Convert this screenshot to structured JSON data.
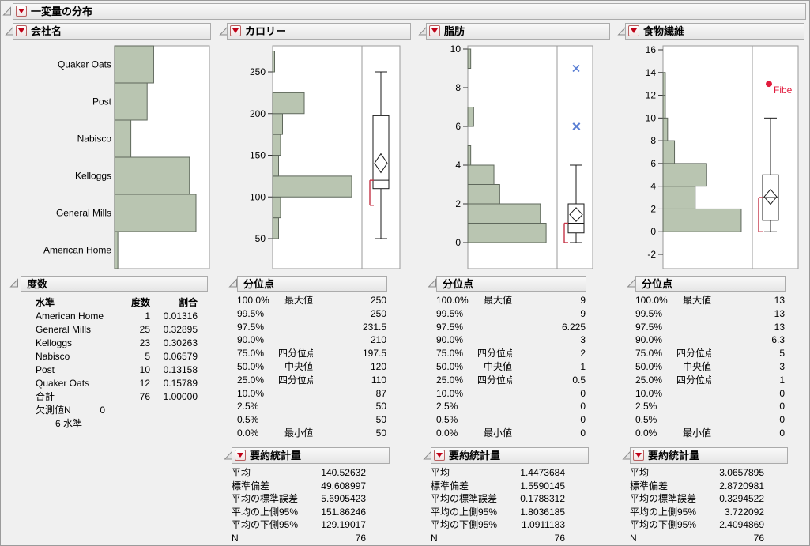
{
  "window": {
    "title": "一変量の分布"
  },
  "colors": {
    "histogram_fill": "#b9c5b1",
    "histogram_stroke": "#5f685c",
    "plot_border": "#9a9a9a",
    "box_stroke": "#1a1a1a",
    "accent_red": "#e11b3d",
    "bracket_red": "#c53245",
    "outlier_blue": "#5b7fd4"
  },
  "panels": [
    {
      "title": "会社名",
      "freq": {
        "title": "度数",
        "columns": [
          "水準",
          "度数",
          "割合"
        ],
        "rows": [
          [
            "American Home",
            "1",
            "0.01316"
          ],
          [
            "General Mills",
            "25",
            "0.32895"
          ],
          [
            "Kelloggs",
            "23",
            "0.30263"
          ],
          [
            "Nabisco",
            "5",
            "0.06579"
          ],
          [
            "Post",
            "10",
            "0.13158"
          ],
          [
            "Quaker Oats",
            "12",
            "0.15789"
          ],
          [
            "合計",
            "76",
            "1.00000"
          ]
        ],
        "missing_label": "欠測値N",
        "missing_value": "0",
        "levels_note": "6 水準"
      }
    },
    {
      "title": "カロリー",
      "quantiles": {
        "title": "分位点",
        "rows": [
          [
            "100.0%",
            "最大値",
            "250"
          ],
          [
            "99.5%",
            "",
            "250"
          ],
          [
            "97.5%",
            "",
            "231.5"
          ],
          [
            "90.0%",
            "",
            "210"
          ],
          [
            "75.0%",
            "四分位点",
            "197.5"
          ],
          [
            "50.0%",
            "中央値",
            "120"
          ],
          [
            "25.0%",
            "四分位点",
            "110"
          ],
          [
            "10.0%",
            "",
            "87"
          ],
          [
            "2.5%",
            "",
            "50"
          ],
          [
            "0.5%",
            "",
            "50"
          ],
          [
            "0.0%",
            "最小値",
            "50"
          ]
        ]
      },
      "summary": {
        "title": "要約統計量",
        "rows": [
          [
            "平均",
            "140.52632"
          ],
          [
            "標準偏差",
            "49.608997"
          ],
          [
            "平均の標準誤差",
            "5.6905423"
          ],
          [
            "平均の上側95%",
            "151.86246"
          ],
          [
            "平均の下側95%",
            "129.19017"
          ],
          [
            "N",
            "76"
          ]
        ]
      }
    },
    {
      "title": "脂肪",
      "quantiles": {
        "title": "分位点",
        "rows": [
          [
            "100.0%",
            "最大値",
            "9"
          ],
          [
            "99.5%",
            "",
            "9"
          ],
          [
            "97.5%",
            "",
            "6.225"
          ],
          [
            "90.0%",
            "",
            "3"
          ],
          [
            "75.0%",
            "四分位点",
            "2"
          ],
          [
            "50.0%",
            "中央値",
            "1"
          ],
          [
            "25.0%",
            "四分位点",
            "0.5"
          ],
          [
            "10.0%",
            "",
            "0"
          ],
          [
            "2.5%",
            "",
            "0"
          ],
          [
            "0.5%",
            "",
            "0"
          ],
          [
            "0.0%",
            "最小値",
            "0"
          ]
        ]
      },
      "summary": {
        "title": "要約統計量",
        "rows": [
          [
            "平均",
            "1.4473684"
          ],
          [
            "標準偏差",
            "1.5590145"
          ],
          [
            "平均の標準誤差",
            "0.1788312"
          ],
          [
            "平均の上側95%",
            "1.8036185"
          ],
          [
            "平均の下側95%",
            "1.0911183"
          ],
          [
            "N",
            "76"
          ]
        ]
      }
    },
    {
      "title": "食物繊維",
      "quantiles": {
        "title": "分位点",
        "rows": [
          [
            "100.0%",
            "最大値",
            "13"
          ],
          [
            "99.5%",
            "",
            "13"
          ],
          [
            "97.5%",
            "",
            "13"
          ],
          [
            "90.0%",
            "",
            "6.3"
          ],
          [
            "75.0%",
            "四分位点",
            "5"
          ],
          [
            "50.0%",
            "中央値",
            "3"
          ],
          [
            "25.0%",
            "四分位点",
            "1"
          ],
          [
            "10.0%",
            "",
            "0"
          ],
          [
            "2.5%",
            "",
            "0"
          ],
          [
            "0.5%",
            "",
            "0"
          ],
          [
            "0.0%",
            "最小値",
            "0"
          ]
        ]
      },
      "summary": {
        "title": "要約統計量",
        "rows": [
          [
            "平均",
            "3.0657895"
          ],
          [
            "標準偏差",
            "2.8720981"
          ],
          [
            "平均の標準誤差",
            "0.3294522"
          ],
          [
            "平均の上側95%",
            "3.722092"
          ],
          [
            "平均の下側95%",
            "2.4094869"
          ],
          [
            "N",
            "76"
          ]
        ]
      }
    }
  ],
  "chart_data": [
    {
      "type": "bar",
      "orientation": "horizontal",
      "title": "会社名",
      "categories": [
        "Quaker Oats",
        "Post",
        "Nabisco",
        "Kelloggs",
        "General Mills",
        "American Home"
      ],
      "values": [
        12,
        10,
        5,
        23,
        25,
        1
      ],
      "xlabel": "",
      "ylabel": "",
      "legend": false
    },
    {
      "type": "histogram",
      "title": "カロリー",
      "axis": {
        "ticks": [
          50,
          100,
          150,
          200,
          250
        ],
        "range_shown": [
          14,
          281
        ]
      },
      "bins": {
        "start": 50,
        "width": 25,
        "counts": [
          3,
          4,
          40,
          3,
          4,
          5,
          16,
          0,
          1
        ]
      },
      "boxplot": {
        "whisker_low": 50,
        "q1": 110,
        "median": 120,
        "q3": 197.5,
        "whisker_high": 250,
        "mean": 140.52632,
        "mean_ci_low": 129.19017,
        "mean_ci_high": 151.86246,
        "shortest_half": [
          90,
          120
        ],
        "outliers": []
      }
    },
    {
      "type": "histogram",
      "title": "脂肪",
      "axis": {
        "ticks": [
          0,
          2,
          4,
          6,
          8,
          10
        ],
        "range_shown": [
          -1.35,
          10.2
        ]
      },
      "bins": {
        "start": 0,
        "width": 1,
        "counts": [
          27,
          25,
          11,
          9,
          1,
          0,
          2,
          0,
          0,
          1
        ]
      },
      "boxplot": {
        "whisker_low": 0,
        "q1": 0.5,
        "median": 1,
        "q3": 2,
        "whisker_high": 4,
        "mean": 1.4473684,
        "mean_ci_low": 1.0911183,
        "mean_ci_high": 1.8036185,
        "shortest_half": [
          0,
          1
        ],
        "outliers": [
          9,
          6,
          6
        ]
      }
    },
    {
      "type": "histogram",
      "title": "食物繊維",
      "axis": {
        "ticks": [
          -2,
          0,
          2,
          4,
          6,
          8,
          10,
          12,
          14,
          16
        ],
        "range_shown": [
          -3.25,
          16.33
        ]
      },
      "bins": {
        "start": 0,
        "width": 2,
        "counts": [
          34,
          14,
          19,
          5,
          2,
          1,
          1
        ]
      },
      "boxplot": {
        "whisker_low": 0,
        "q1": 1,
        "median": 3,
        "q3": 5,
        "whisker_high": 10,
        "mean": 3.0657895,
        "mean_ci_low": 2.4094869,
        "mean_ci_high": 3.722092,
        "shortest_half": [
          0,
          3
        ],
        "outliers": [],
        "labeled_point": {
          "value": 13,
          "label": "Fibe"
        }
      }
    }
  ]
}
